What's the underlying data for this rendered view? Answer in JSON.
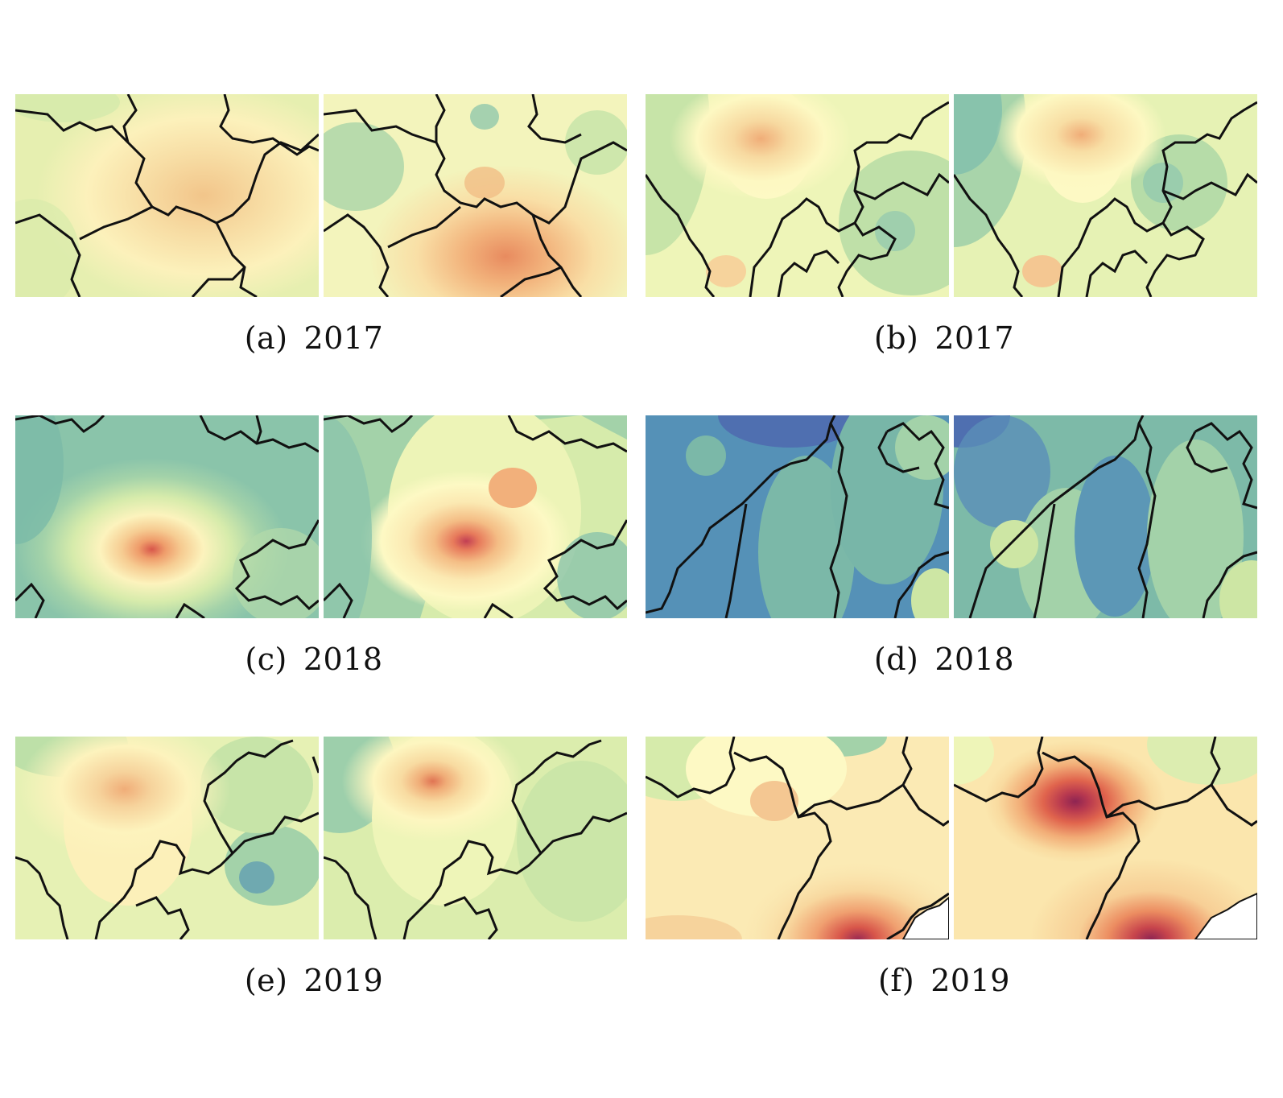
{
  "figure": {
    "rows": [
      {
        "left": {
          "label": "(a)",
          "year": "2017"
        },
        "right": {
          "label": "(b)",
          "year": "2017"
        }
      },
      {
        "left": {
          "label": "(c)",
          "year": "2018"
        },
        "right": {
          "label": "(d)",
          "year": "2018"
        }
      },
      {
        "left": {
          "label": "(e)",
          "year": "2019"
        },
        "right": {
          "label": "(f)",
          "year": "2019"
        }
      }
    ]
  },
  "colors": {
    "blue_dark": "#4f6fb0",
    "blue": "#5b93b8",
    "teal": "#7dbaa8",
    "green_light": "#cde6a4",
    "yellow": "#fefcc4",
    "orange_light": "#f7d9a0",
    "orange": "#efa670",
    "red": "#d8564a",
    "maroon": "#9b2a52",
    "boundary": "#111111"
  }
}
